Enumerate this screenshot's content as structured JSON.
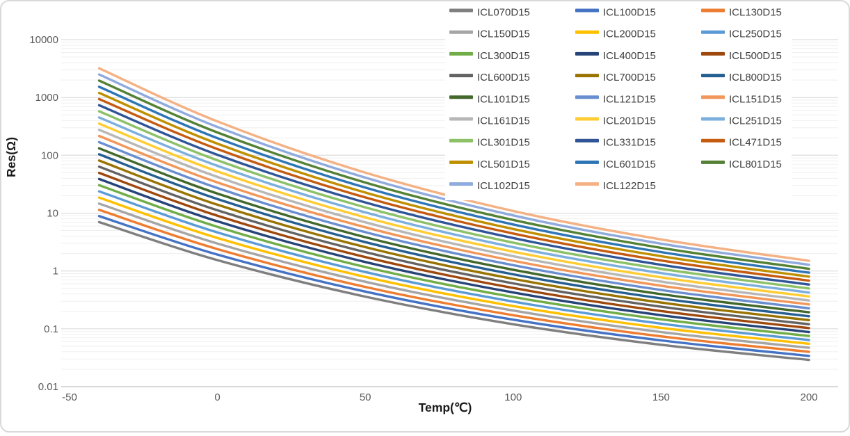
{
  "chart_data": {
    "type": "line",
    "title": "",
    "xlabel": "Temp(℃)",
    "ylabel": "Res(Ω)",
    "x_axis": {
      "min": -50,
      "max": 200,
      "ticks": [
        -50,
        0,
        50,
        100,
        150,
        200
      ]
    },
    "y_axis": {
      "scale": "log",
      "min": 0.01,
      "max": 10000,
      "ticks": [
        10000,
        1000,
        100,
        10,
        1,
        0.1,
        0.01
      ]
    },
    "grid": {
      "major_horizontal": true,
      "minor_horizontal": true,
      "vertical": false
    },
    "legend_position": "top-right",
    "legend_columns": 3,
    "colors": {
      "major_grid": "#D6D6D6",
      "minor_grid": "#EFEFEF",
      "axis_line": "#C0C0C0",
      "tick_text": "#595959",
      "legend_text": "#3F3F3F",
      "axis_title_text": "#1A1A1A",
      "frame_border": "#D9D9D9",
      "background": "#FFFFFF"
    },
    "x": [
      -40,
      0,
      50,
      100,
      150,
      200
    ],
    "series": [
      {
        "name": "ICL070D15",
        "color": "#7F7F7F",
        "values": [
          7.0,
          1.54,
          0.36,
          0.12,
          0.053,
          0.029
        ]
      },
      {
        "name": "ICL100D15",
        "color": "#4472C4",
        "values": [
          8.9,
          1.92,
          0.44,
          0.144,
          0.063,
          0.034
        ]
      },
      {
        "name": "ICL130D15",
        "color": "#ED7D31",
        "values": [
          11.4,
          2.39,
          0.53,
          0.172,
          0.074,
          0.04
        ]
      },
      {
        "name": "ICL150D15",
        "color": "#A5A5A5",
        "values": [
          14.6,
          2.98,
          0.65,
          0.207,
          0.088,
          0.047
        ]
      },
      {
        "name": "ICL200D15",
        "color": "#FFC000",
        "values": [
          18.6,
          3.72,
          0.79,
          0.247,
          0.104,
          0.055
        ]
      },
      {
        "name": "ICL250D15",
        "color": "#5B9BD5",
        "values": [
          23.8,
          4.64,
          0.96,
          0.296,
          0.123,
          0.064
        ]
      },
      {
        "name": "ICL300D15",
        "color": "#70AD47",
        "values": [
          30.4,
          5.79,
          1.17,
          0.355,
          0.146,
          0.075
        ]
      },
      {
        "name": "ICL400D15",
        "color": "#264478",
        "values": [
          38.9,
          7.22,
          1.43,
          0.425,
          0.172,
          0.088
        ]
      },
      {
        "name": "ICL500D15",
        "color": "#9E480E",
        "values": [
          49.7,
          9.0,
          1.74,
          0.509,
          0.203,
          0.103
        ]
      },
      {
        "name": "ICL600D15",
        "color": "#636363",
        "values": [
          63.5,
          11.2,
          2.12,
          0.61,
          0.241,
          0.12
        ]
      },
      {
        "name": "ICL700D15",
        "color": "#997300",
        "values": [
          81.1,
          14.0,
          2.58,
          0.731,
          0.284,
          0.141
        ]
      },
      {
        "name": "ICL800D15",
        "color": "#255E91",
        "values": [
          104,
          17.5,
          3.15,
          0.875,
          0.336,
          0.165
        ]
      },
      {
        "name": "ICL101D15",
        "color": "#43682B",
        "values": [
          132,
          21.8,
          3.84,
          1.05,
          0.398,
          0.193
        ]
      },
      {
        "name": "ICL121D15",
        "color": "#698ED0",
        "values": [
          169,
          27.2,
          4.68,
          1.26,
          0.47,
          0.226
        ]
      },
      {
        "name": "ICL151D15",
        "color": "#F1975A",
        "values": [
          216,
          33.9,
          5.7,
          1.5,
          0.556,
          0.264
        ]
      },
      {
        "name": "ICL161D15",
        "color": "#B7B7B7",
        "values": [
          276,
          42.3,
          6.94,
          1.8,
          0.657,
          0.309
        ]
      },
      {
        "name": "ICL201D15",
        "color": "#FFCD33",
        "values": [
          353,
          52.7,
          8.46,
          2.16,
          0.777,
          0.363
        ]
      },
      {
        "name": "ICL251D15",
        "color": "#7CAFDD",
        "values": [
          451,
          65.8,
          10.3,
          2.58,
          0.919,
          0.424
        ]
      },
      {
        "name": "ICL301D15",
        "color": "#8CC168",
        "values": [
          576,
          82.0,
          12.6,
          3.09,
          1.09,
          0.497
        ]
      },
      {
        "name": "ICL331D15",
        "color": "#2F5597",
        "values": [
          735,
          102,
          15.3,
          3.71,
          1.28,
          0.582
        ]
      },
      {
        "name": "ICL471D15",
        "color": "#C55A11",
        "values": [
          940,
          128,
          18.7,
          4.44,
          1.52,
          0.681
        ]
      },
      {
        "name": "ICL501D15",
        "color": "#BF8F00",
        "values": [
          1200,
          159,
          22.7,
          5.32,
          1.8,
          0.798
        ]
      },
      {
        "name": "ICL601D15",
        "color": "#2E75B6",
        "values": [
          1530,
          198,
          27.7,
          6.37,
          2.12,
          0.934
        ]
      },
      {
        "name": "ICL801D15",
        "color": "#538135",
        "values": [
          1960,
          248,
          33.8,
          7.63,
          2.51,
          1.09
        ]
      },
      {
        "name": "ICL102D15",
        "color": "#8FAADC",
        "values": [
          2500,
          309,
          41.2,
          9.14,
          2.97,
          1.28
        ]
      },
      {
        "name": "ICL122D15",
        "color": "#F4B183",
        "values": [
          3200,
          385,
          50.2,
          10.9,
          3.51,
          1.5
        ]
      }
    ]
  }
}
